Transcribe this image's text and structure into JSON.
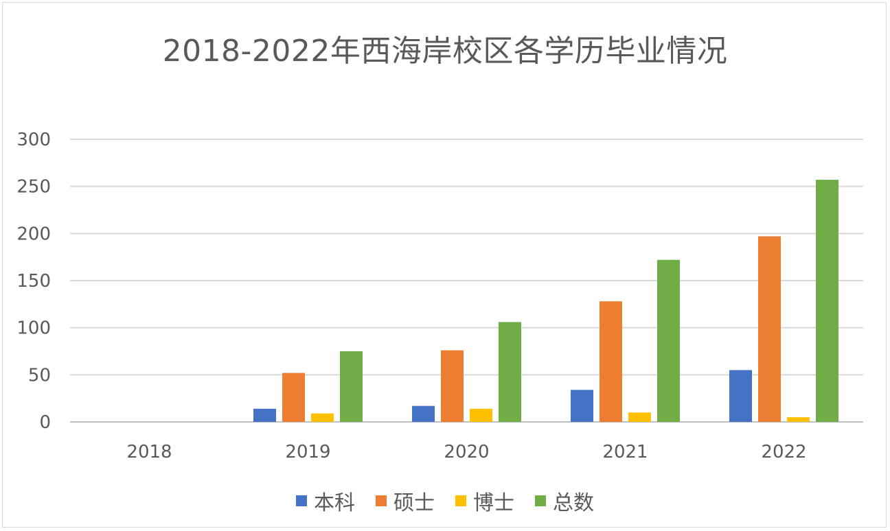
{
  "chart_data": {
    "type": "bar",
    "title": "2018-2022年西海岸校区各学历毕业情况",
    "xlabel": "",
    "ylabel": "",
    "categories": [
      "2018",
      "2019",
      "2020",
      "2021",
      "2022"
    ],
    "ylim": [
      0,
      300
    ],
    "yticks": [
      0,
      50,
      100,
      150,
      200,
      250,
      300
    ],
    "grid": true,
    "legend_position": "bottom",
    "series": [
      {
        "name": "本科",
        "color": "#4472c4",
        "values": [
          0,
          14,
          17,
          34,
          55
        ]
      },
      {
        "name": "硕士",
        "color": "#ed7d31",
        "values": [
          0,
          52,
          76,
          128,
          197
        ]
      },
      {
        "name": "博士",
        "color": "#ffc000",
        "values": [
          0,
          9,
          14,
          10,
          5
        ]
      },
      {
        "name": "总数",
        "color": "#70ad47",
        "values": [
          0,
          75,
          106,
          172,
          257
        ]
      }
    ]
  }
}
